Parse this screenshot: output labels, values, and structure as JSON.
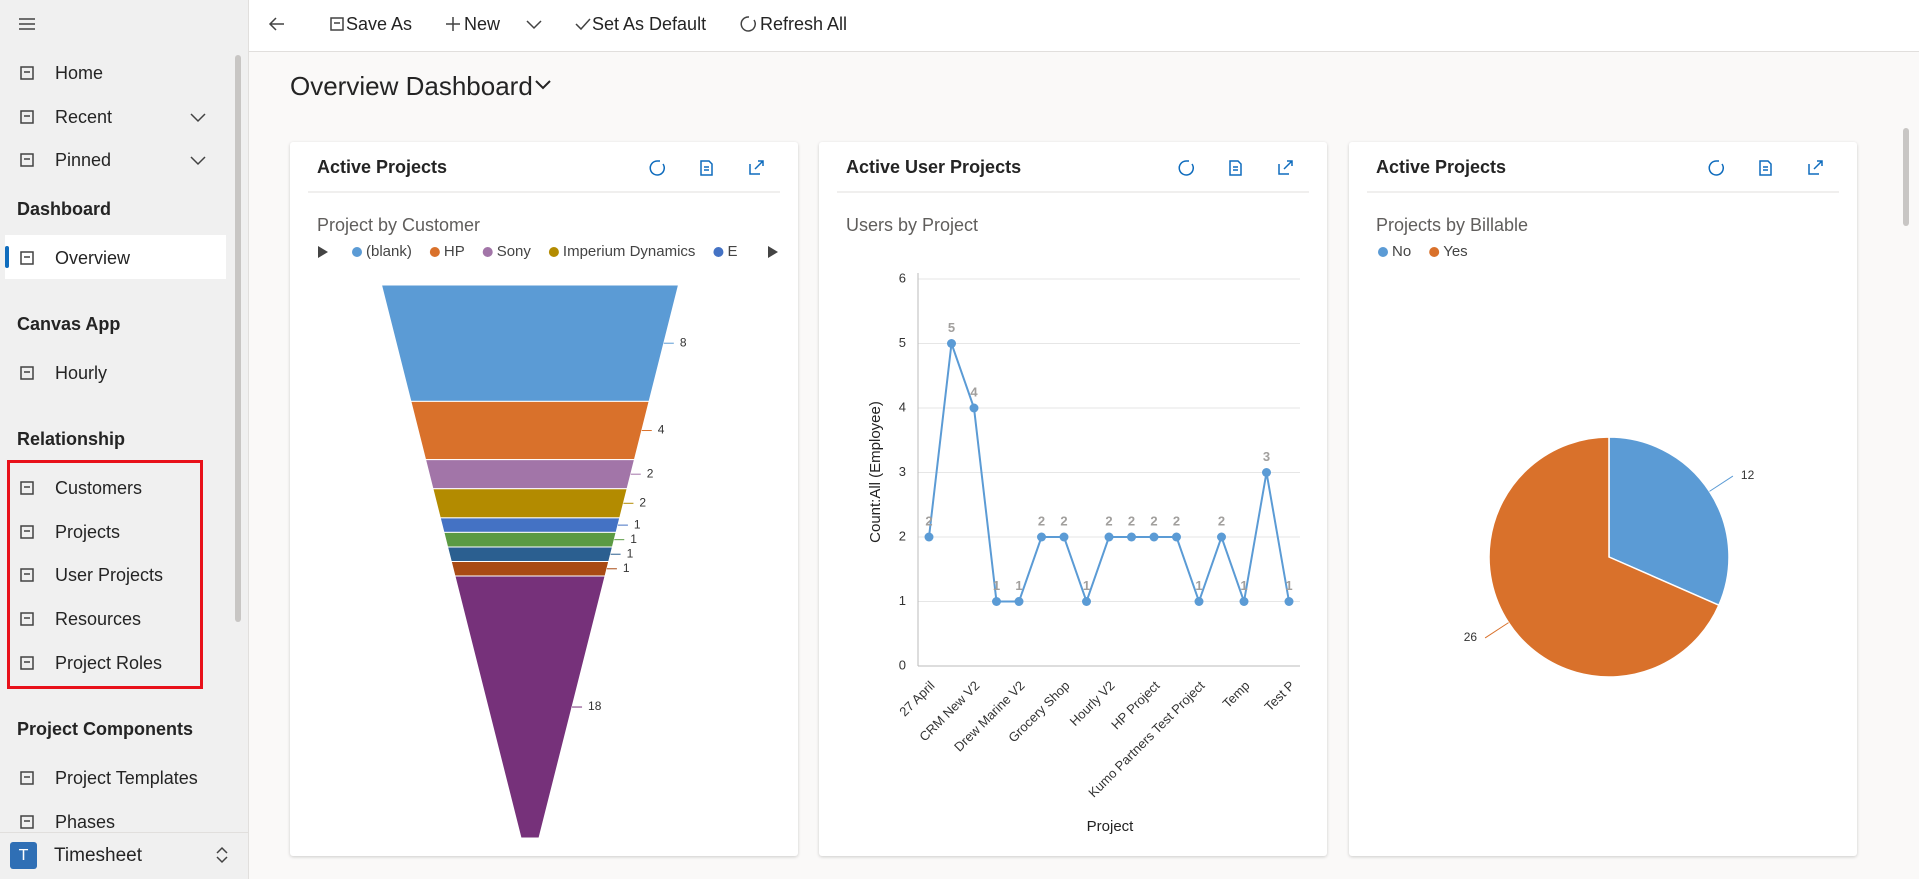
{
  "nav": {
    "top": [
      "Home",
      "Recent",
      "Pinned"
    ],
    "groups": [
      {
        "title": "Dashboard",
        "items": [
          "Overview"
        ]
      },
      {
        "title": "Canvas App",
        "items": [
          "Hourly"
        ]
      },
      {
        "title": "Relationship",
        "items": [
          "Customers",
          "Projects",
          "User Projects",
          "Resources",
          "Project Roles"
        ]
      },
      {
        "title": "Project Components",
        "items": [
          "Project Templates",
          "Phases"
        ]
      }
    ],
    "app": {
      "initial": "T",
      "name": "Timesheet"
    }
  },
  "toolbar": [
    "Save As",
    "New",
    "Set As Default",
    "Refresh All"
  ],
  "header": {
    "title": "Overview Dashboard"
  },
  "cards": [
    {
      "title": "Active Projects"
    },
    {
      "title": "Active User Projects"
    },
    {
      "title": "Active Projects"
    }
  ],
  "chart_data": [
    {
      "type": "funnel",
      "title": "Project by Customer",
      "categories": [
        "(blank)",
        "HP",
        "Sony",
        "Imperium Dynamics",
        "E",
        null,
        null,
        null,
        null
      ],
      "values": [
        8,
        4,
        2,
        2,
        1,
        1,
        1,
        1,
        18
      ],
      "colors": [
        "#5b9bd5",
        "#d9712b",
        "#a275a8",
        "#b38b00",
        "#4472c4",
        "#5b9a43",
        "#2b5f90",
        "#a84a14",
        "#76317a"
      ],
      "legend": "top"
    },
    {
      "type": "line",
      "title": "Users by Project",
      "x_label": "Project",
      "y_label": "Count:All (Employee)",
      "categories": [
        "27 April",
        null,
        "CRM New V2",
        null,
        "Drew Marine V2",
        null,
        "Grocery Shop",
        null,
        "Hourly V2",
        null,
        "HP Project",
        null,
        "Kumo Partners Test Project",
        null,
        "Temp",
        null,
        "Test P"
      ],
      "values": [
        2,
        5,
        4,
        1,
        1,
        2,
        2,
        1,
        2,
        2,
        2,
        2,
        1,
        2,
        1,
        3,
        1
      ],
      "color": "#5b9bd5",
      "ylim": [
        0,
        6
      ],
      "yticks": [
        0,
        1,
        2,
        3,
        4,
        5,
        6
      ],
      "grid": true,
      "data_labels": true
    },
    {
      "type": "pie",
      "title": "Projects by Billable",
      "categories": [
        "No",
        "Yes"
      ],
      "values": [
        12,
        26
      ],
      "colors": [
        "#5b9bd5",
        "#d9712b"
      ],
      "legend": "top"
    }
  ]
}
